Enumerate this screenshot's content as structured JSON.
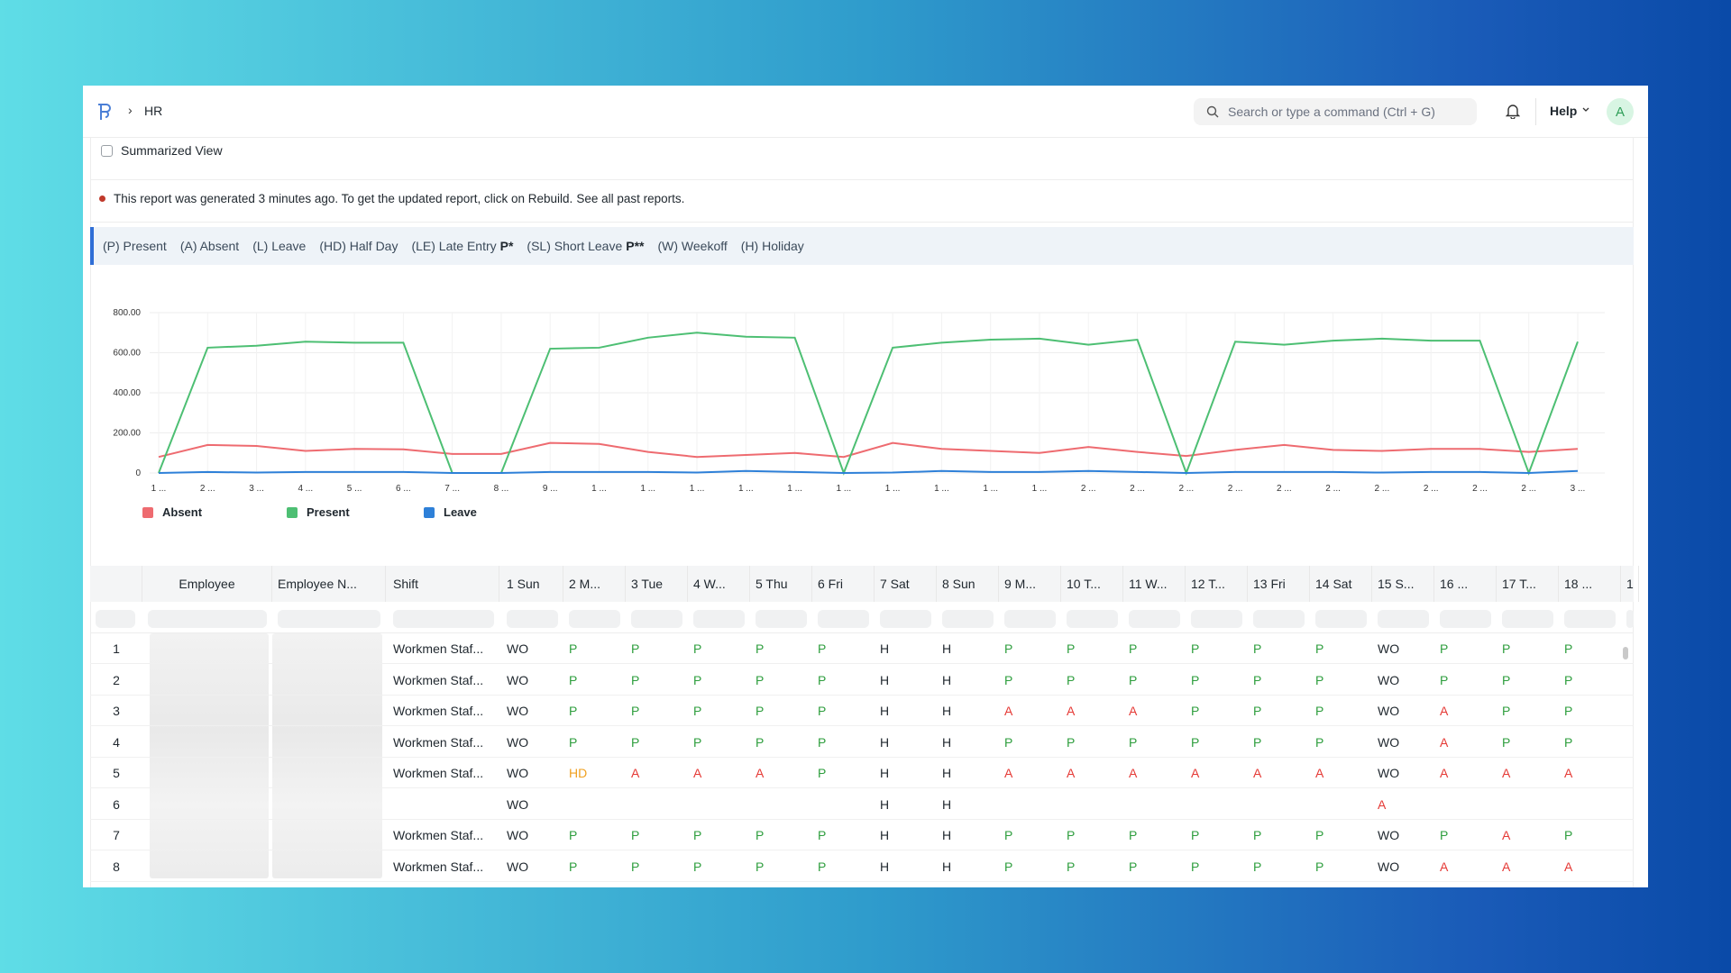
{
  "breadcrumb": {
    "current": "HR"
  },
  "search": {
    "placeholder": "Search or type a command (Ctrl + G)"
  },
  "navbar": {
    "help_label": "Help",
    "avatar_letter": "A"
  },
  "summarized_view_label": "Summarized View",
  "notice": {
    "text": "This report was generated 3 minutes ago. To get the updated report, click on Rebuild.",
    "link": "See all past reports."
  },
  "legend_bar": {
    "items": [
      "(P) Present",
      "(A) Absent",
      "(L) Leave",
      "(HD) Half Day",
      "(LE) Late Entry",
      "(SL) Short Leave",
      "(W) Weekoff",
      "(H) Holiday"
    ],
    "late_entry_mark": "P*",
    "short_leave_mark": "P**"
  },
  "chart_data": {
    "type": "line",
    "x": [
      "1 ...",
      "2 ...",
      "3 ...",
      "4 ...",
      "5 ...",
      "6 ...",
      "7 ...",
      "8 ...",
      "9 ...",
      "1 ...",
      "1 ...",
      "1 ...",
      "1 ...",
      "1 ...",
      "1 ...",
      "1 ...",
      "1 ...",
      "1 ...",
      "1 ...",
      "2 ...",
      "2 ...",
      "2 ...",
      "2 ...",
      "2 ...",
      "2 ...",
      "2 ...",
      "2 ...",
      "2 ...",
      "2 ...",
      "3 ..."
    ],
    "ylim": [
      0,
      800
    ],
    "yticks": [
      "800.00",
      "600.00",
      "400.00",
      "200.00",
      "0"
    ],
    "series": [
      {
        "name": "Absent",
        "color": "#ee6b70",
        "values": [
          80,
          140,
          135,
          110,
          120,
          118,
          95,
          95,
          150,
          145,
          105,
          80,
          90,
          100,
          80,
          150,
          120,
          110,
          100,
          130,
          105,
          85,
          115,
          140,
          115,
          110,
          120,
          120,
          105,
          120
        ]
      },
      {
        "name": "Present",
        "color": "#4dbf73",
        "values": [
          0,
          625,
          635,
          655,
          650,
          650,
          0,
          0,
          620,
          625,
          675,
          700,
          680,
          675,
          0,
          625,
          650,
          665,
          670,
          640,
          665,
          0,
          655,
          640,
          660,
          670,
          660,
          660,
          0,
          655
        ]
      },
      {
        "name": "Leave",
        "color": "#2e80d8",
        "values": [
          0,
          5,
          2,
          5,
          5,
          5,
          0,
          0,
          5,
          5,
          5,
          2,
          10,
          5,
          0,
          2,
          10,
          5,
          5,
          10,
          5,
          0,
          5,
          5,
          5,
          2,
          5,
          5,
          0,
          10
        ]
      }
    ]
  },
  "table": {
    "columns": [
      "Employee",
      "Employee N...",
      "Shift",
      "1 Sun",
      "2 M...",
      "3 Tue",
      "4 W...",
      "5 Thu",
      "6 Fri",
      "7 Sat",
      "8 Sun",
      "9 M...",
      "10 T...",
      "11 W...",
      "12 T...",
      "13 Fri",
      "14 Sat",
      "15 S...",
      "16 ...",
      "17 T...",
      "18 ...",
      "1"
    ],
    "rows": [
      {
        "idx": "1",
        "shift": "Workmen Staf...",
        "days": [
          "WO",
          "P",
          "P",
          "P",
          "P",
          "P",
          "H",
          "H",
          "P",
          "P",
          "P",
          "P",
          "P",
          "P",
          "WO",
          "P",
          "P",
          "P"
        ]
      },
      {
        "idx": "2",
        "shift": "Workmen Staf...",
        "days": [
          "WO",
          "P",
          "P",
          "P",
          "P",
          "P",
          "H",
          "H",
          "P",
          "P",
          "P",
          "P",
          "P",
          "P",
          "WO",
          "P",
          "P",
          "P"
        ]
      },
      {
        "idx": "3",
        "shift": "Workmen Staf...",
        "days": [
          "WO",
          "P",
          "P",
          "P",
          "P",
          "P",
          "H",
          "H",
          "A",
          "A",
          "A",
          "P",
          "P",
          "P",
          "WO",
          "A",
          "P",
          "P"
        ]
      },
      {
        "idx": "4",
        "shift": "Workmen Staf...",
        "days": [
          "WO",
          "P",
          "P",
          "P",
          "P",
          "P",
          "H",
          "H",
          "P",
          "P",
          "P",
          "P",
          "P",
          "P",
          "WO",
          "A",
          "P",
          "P"
        ]
      },
      {
        "idx": "5",
        "shift": "Workmen Staf...",
        "days": [
          "WO",
          "HD",
          "A",
          "A",
          "A",
          "P",
          "H",
          "H",
          "A",
          "A",
          "A",
          "A",
          "A",
          "A",
          "WO",
          "A",
          "A",
          "A"
        ]
      },
      {
        "idx": "6",
        "shift": "",
        "days": [
          "WO",
          "",
          "",
          "",
          "",
          "",
          "H",
          "H",
          "",
          "",
          "",
          "",
          "",
          "",
          "A",
          "",
          "",
          ""
        ]
      },
      {
        "idx": "7",
        "shift": "Workmen Staf...",
        "days": [
          "WO",
          "P",
          "P",
          "P",
          "P",
          "P",
          "H",
          "H",
          "P",
          "P",
          "P",
          "P",
          "P",
          "P",
          "WO",
          "P",
          "A",
          "P"
        ]
      },
      {
        "idx": "8",
        "shift": "Workmen Staf...",
        "days": [
          "WO",
          "P",
          "P",
          "P",
          "P",
          "P",
          "H",
          "H",
          "P",
          "P",
          "P",
          "P",
          "P",
          "P",
          "WO",
          "A",
          "A",
          "A"
        ]
      }
    ]
  }
}
